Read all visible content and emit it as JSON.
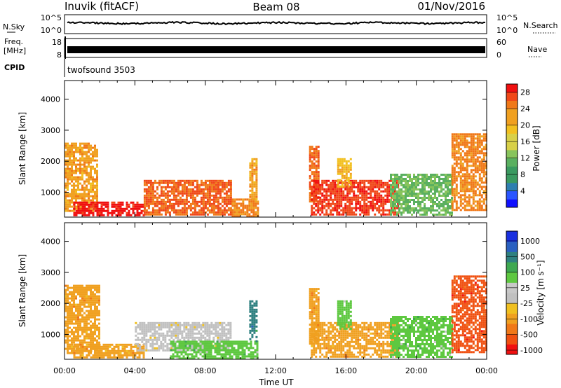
{
  "header": {
    "station": "Inuvik (fitACF)",
    "beam": "Beam 08",
    "date": "01/Nov/2016"
  },
  "summary_panels": {
    "nsky_label": "N.Sky",
    "nsky_ticks": [
      "10^5",
      "10^0"
    ],
    "nsearch_label": "N.Search",
    "freq_label_line1": "Freq.",
    "freq_label_line2": "[MHz]",
    "freq_ticks": [
      "18",
      "8"
    ],
    "nave_ticks": [
      "60",
      "0"
    ],
    "nave_label": "Nave",
    "cpid_label": "CPID",
    "cpid_text": "twofsound 3503"
  },
  "colors": {
    "scale": [
      "#1010ff",
      "#2a55ff",
      "#2e7fb0",
      "#3a9a60",
      "#5ab060",
      "#88c45c",
      "#d8d048",
      "#f2c020",
      "#f0a020",
      "#f07818",
      "#f04818",
      "#f01010"
    ],
    "velocity_scale": [
      "#f01010",
      "#f05010",
      "#f07818",
      "#f0a020",
      "#f0c020",
      "#c0c0c0",
      "#c8c8c8",
      "#5ec840",
      "#3ea850",
      "#2e8080",
      "#2a60c0",
      "#1a30e0"
    ]
  },
  "chart_data": [
    {
      "type": "heatmap",
      "panel": "power",
      "ylabel": "Slant Range [km]",
      "y_ticks": [
        "1000",
        "2000",
        "3000",
        "4000"
      ],
      "ylim": [
        200,
        4600
      ],
      "xlim_hours": [
        0,
        24
      ],
      "colorbar_label": "Power [dB]",
      "colorbar_ticks": [
        "4",
        "8",
        "12",
        "16",
        "20",
        "24",
        "28"
      ],
      "colorbar_range": [
        0,
        30
      ],
      "patches": [
        {
          "t_start": 0.0,
          "t_end": 1.8,
          "r_min": 400,
          "r_max": 2600,
          "value": 22
        },
        {
          "t_start": 0.5,
          "t_end": 4.5,
          "r_min": 250,
          "r_max": 700,
          "value": 30
        },
        {
          "t_start": 4.5,
          "t_end": 9.5,
          "r_min": 250,
          "r_max": 1400,
          "value": 26
        },
        {
          "t_start": 9.5,
          "t_end": 11.0,
          "r_min": 250,
          "r_max": 800,
          "value": 24
        },
        {
          "t_start": 10.5,
          "t_end": 10.9,
          "r_min": 800,
          "r_max": 2100,
          "value": 22
        },
        {
          "t_start": 13.9,
          "t_end": 14.4,
          "r_min": 700,
          "r_max": 2500,
          "value": 26
        },
        {
          "t_start": 14.0,
          "t_end": 19.0,
          "r_min": 250,
          "r_max": 1400,
          "value": 28
        },
        {
          "t_start": 15.5,
          "t_end": 16.3,
          "r_min": 1200,
          "r_max": 2100,
          "value": 20
        },
        {
          "t_start": 18.5,
          "t_end": 22.0,
          "r_min": 250,
          "r_max": 1600,
          "value": 12
        },
        {
          "t_start": 22.0,
          "t_end": 24.0,
          "r_min": 400,
          "r_max": 2900,
          "value": 24
        }
      ]
    },
    {
      "type": "heatmap",
      "panel": "velocity",
      "ylabel": "Slant Range [km]",
      "y_ticks": [
        "1000",
        "2000",
        "3000",
        "4000"
      ],
      "ylim": [
        200,
        4600
      ],
      "xlim_hours": [
        0,
        24
      ],
      "x_ticks": [
        "00:00",
        "04:00",
        "08:00",
        "12:00",
        "16:00",
        "20:00",
        "00:00"
      ],
      "xlabel": "Time UT",
      "colorbar_label": "Velocity [m s⁻¹]",
      "colorbar_ticks": [
        "1000",
        "500",
        "100",
        "25",
        "-25",
        "-100",
        "-500",
        "-1000"
      ],
      "patches": [
        {
          "t_start": 0.0,
          "t_end": 2.0,
          "r_min": 400,
          "r_max": 2600,
          "value": -100
        },
        {
          "t_start": 0.5,
          "t_end": 4.5,
          "r_min": 250,
          "r_max": 700,
          "value": -100
        },
        {
          "t_start": 4.0,
          "t_end": 9.5,
          "r_min": 500,
          "r_max": 1400,
          "value": 0
        },
        {
          "t_start": 6.0,
          "t_end": 11.0,
          "r_min": 250,
          "r_max": 800,
          "value": 100
        },
        {
          "t_start": 10.5,
          "t_end": 10.9,
          "r_min": 800,
          "r_max": 2100,
          "value": 500
        },
        {
          "t_start": 13.9,
          "t_end": 14.4,
          "r_min": 700,
          "r_max": 2500,
          "value": -100
        },
        {
          "t_start": 14.0,
          "t_end": 19.0,
          "r_min": 250,
          "r_max": 1400,
          "value": -100
        },
        {
          "t_start": 15.5,
          "t_end": 16.3,
          "r_min": 1200,
          "r_max": 2100,
          "value": 100
        },
        {
          "t_start": 18.5,
          "t_end": 22.0,
          "r_min": 250,
          "r_max": 1600,
          "value": 100
        },
        {
          "t_start": 22.0,
          "t_end": 24.0,
          "r_min": 400,
          "r_max": 2900,
          "value": -500
        }
      ]
    }
  ]
}
